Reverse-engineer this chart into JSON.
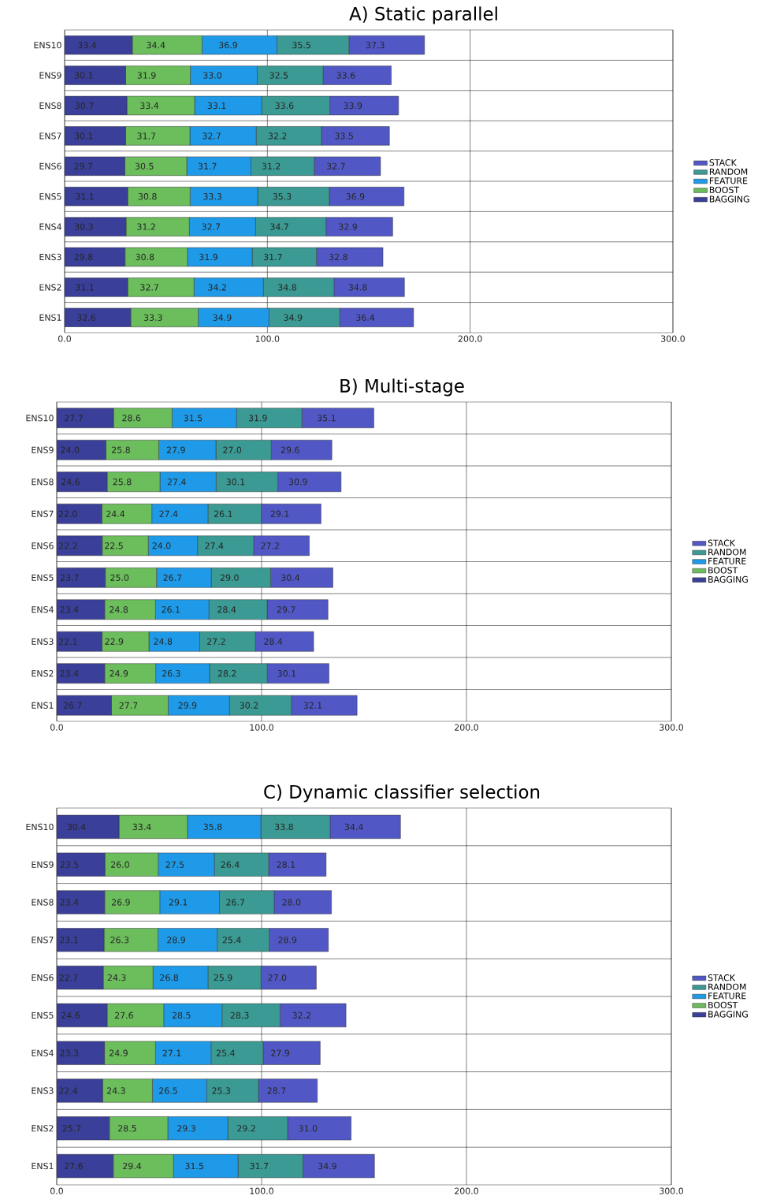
{
  "chart_data": [
    {
      "type": "bar",
      "orientation": "horizontal",
      "stacked": true,
      "title": "A) Static parallel",
      "categories": [
        "ENS10",
        "ENS9",
        "ENS8",
        "ENS7",
        "ENS6",
        "ENS5",
        "ENS4",
        "ENS3",
        "ENS2",
        "ENS1"
      ],
      "series": [
        {
          "name": "BAGGING",
          "color": "#3a3f99",
          "values": [
            33.4,
            30.1,
            30.7,
            30.1,
            29.7,
            31.1,
            30.3,
            29.8,
            31.1,
            32.6
          ],
          "value_labels": [
            "33.4",
            "30.1",
            "30.7",
            "30.1",
            "29.7",
            "31.1",
            "30.3",
            "29.8",
            "31.1",
            "32.6"
          ]
        },
        {
          "name": "BOOST",
          "color": "#6cbd5c",
          "values": [
            34.4,
            31.9,
            33.4,
            31.7,
            30.5,
            30.8,
            31.2,
            30.8,
            32.7,
            33.3
          ],
          "value_labels": [
            "34.4",
            "31.9",
            "33.4",
            "31.7",
            "30.5",
            "30.8",
            "31.2",
            "30.8",
            "32.7",
            "33.3"
          ]
        },
        {
          "name": "FEATURE",
          "color": "#1f9ae8",
          "values": [
            36.9,
            33.0,
            33.1,
            32.7,
            31.7,
            33.3,
            32.7,
            31.9,
            34.2,
            34.9
          ],
          "value_labels": [
            "36.9",
            "33.0",
            "33.1",
            "32.7",
            "31.7",
            "33.3",
            "32.7",
            "31.9",
            "34.2",
            "34.9"
          ]
        },
        {
          "name": "RANDOM",
          "color": "#3b9a93",
          "values": [
            35.5,
            32.5,
            33.6,
            32.2,
            31.2,
            35.3,
            34.7,
            31.7,
            34.8,
            34.9
          ],
          "value_labels": [
            "35.5",
            "32.5",
            "33.6",
            "32.2",
            "31.2",
            "35.3",
            "34.7",
            "31.7",
            "34.8",
            "34.9"
          ]
        },
        {
          "name": "STACK",
          "color": "#5158c5",
          "values": [
            37.3,
            33.6,
            33.9,
            33.5,
            32.7,
            36.9,
            32.9,
            32.8,
            34.8,
            36.4
          ],
          "value_labels": [
            "37.3",
            "33.6",
            "33.9",
            "33.5",
            "32.7",
            "36.9",
            "32.9",
            "32.8",
            "34.8",
            "36.4"
          ]
        }
      ],
      "xlim": [
        0,
        300
      ],
      "xticks": [
        {
          "value": 0,
          "label": "0.0"
        },
        {
          "value": 100,
          "label": "100.0"
        },
        {
          "value": 200,
          "label": "200.0"
        },
        {
          "value": 300,
          "label": "300.0"
        }
      ],
      "grid": true,
      "legend": "right"
    },
    {
      "type": "bar",
      "orientation": "horizontal",
      "stacked": true,
      "title": "B)  Multi-stage",
      "categories": [
        "ENS10",
        "ENS9",
        "ENS8",
        "ENS7",
        "ENS6",
        "ENS5",
        "ENS4",
        "ENS3",
        "ENS2",
        "ENS1"
      ],
      "series": [
        {
          "name": "BAGGING",
          "color": "#3a3f99",
          "values": [
            27.7,
            24.0,
            24.6,
            22.0,
            22.2,
            23.7,
            23.4,
            22.1,
            23.4,
            26.7
          ],
          "value_labels": [
            "27.7",
            "24.0",
            "24.6",
            "22.0",
            "22.2",
            "23.7",
            "23.4",
            "22.1",
            "23.4",
            "26.7"
          ]
        },
        {
          "name": "BOOST",
          "color": "#6cbd5c",
          "values": [
            28.6,
            25.8,
            25.8,
            24.4,
            22.5,
            25.0,
            24.8,
            22.9,
            24.9,
            27.7
          ],
          "value_labels": [
            "28.6",
            "25.8",
            "25.8",
            "24.4",
            "22.5",
            "25.0",
            "24.8",
            "22.9",
            "24.9",
            "27.7"
          ]
        },
        {
          "name": "FEATURE",
          "color": "#1f9ae8",
          "values": [
            31.5,
            27.9,
            27.4,
            27.4,
            24.0,
            26.7,
            26.1,
            24.8,
            26.3,
            29.9
          ],
          "value_labels": [
            "31.5",
            "27.9",
            "27.4",
            "27.4",
            "24.0",
            "26.7",
            "26.1",
            "24.8",
            "26.3",
            "29.9"
          ]
        },
        {
          "name": "RANDOM",
          "color": "#3b9a93",
          "values": [
            31.9,
            27.0,
            30.1,
            26.1,
            27.4,
            29.0,
            28.4,
            27.2,
            28.2,
            30.2
          ],
          "value_labels": [
            "31.9",
            "27.0",
            "30.1",
            "26.1",
            "27.4",
            "29.0",
            "28.4",
            "27.2",
            "28.2",
            "30.2"
          ]
        },
        {
          "name": "STACK",
          "color": "#5158c5",
          "values": [
            35.1,
            29.6,
            30.9,
            29.1,
            27.2,
            30.4,
            29.7,
            28.4,
            30.1,
            32.1
          ],
          "value_labels": [
            "35.1",
            "29.6",
            "30.9",
            "29.1",
            "27.2",
            "30.4",
            "29.7",
            "28.4",
            "30.1",
            "32.1"
          ]
        }
      ],
      "xlim": [
        0,
        300
      ],
      "xticks": [
        {
          "value": 0,
          "label": "0.0"
        },
        {
          "value": 100,
          "label": "100.0"
        },
        {
          "value": 200,
          "label": "200.0"
        },
        {
          "value": 300,
          "label": "300.0"
        }
      ],
      "grid": true,
      "legend": "right"
    },
    {
      "type": "bar",
      "orientation": "horizontal",
      "stacked": true,
      "title": "C) Dynamic classifier selection",
      "categories": [
        "ENS10",
        "ENS9",
        "ENS8",
        "ENS7",
        "ENS6",
        "ENS5",
        "ENS4",
        "ENS3",
        "ENS2",
        "ENS1"
      ],
      "series": [
        {
          "name": "BAGGING",
          "color": "#3a3f99",
          "values": [
            30.4,
            23.5,
            23.4,
            23.1,
            22.7,
            24.6,
            23.3,
            22.4,
            25.7,
            27.6
          ],
          "value_labels": [
            "30.4",
            "23.5",
            "23.4",
            "23.1",
            "22.7",
            "24.6",
            "23.3",
            "22.4",
            "25.7",
            "27.6"
          ]
        },
        {
          "name": "BOOST",
          "color": "#6cbd5c",
          "values": [
            33.4,
            26.0,
            26.9,
            26.3,
            24.3,
            27.6,
            24.9,
            24.3,
            28.5,
            29.4
          ],
          "value_labels": [
            "33.4",
            "26.0",
            "26.9",
            "26.3",
            "24.3",
            "27.6",
            "24.9",
            "24.3",
            "28.5",
            "29.4"
          ]
        },
        {
          "name": "FEATURE",
          "color": "#1f9ae8",
          "values": [
            35.8,
            27.5,
            29.1,
            28.9,
            26.8,
            28.5,
            27.1,
            26.5,
            29.3,
            31.5
          ],
          "value_labels": [
            "35.8",
            "27.5",
            "29.1",
            "28.9",
            "26.8",
            "28.5",
            "27.1",
            "26.5",
            "29.3",
            "31.5"
          ]
        },
        {
          "name": "RANDOM",
          "color": "#3b9a93",
          "values": [
            33.8,
            26.4,
            26.7,
            25.4,
            25.9,
            28.3,
            25.4,
            25.3,
            29.2,
            31.7
          ],
          "value_labels": [
            "33.8",
            "26.4",
            "26.7",
            "25.4",
            "25.9",
            "28.3",
            "25.4",
            "25.3",
            "29.2",
            "31.7"
          ]
        },
        {
          "name": "STACK",
          "color": "#5158c5",
          "values": [
            34.4,
            28.1,
            28.0,
            28.9,
            27.0,
            32.2,
            27.9,
            28.7,
            31.0,
            34.9
          ],
          "value_labels": [
            "34.4",
            "28.1",
            "28.0",
            "28.9",
            "27.0",
            "32.2",
            "27.9",
            "28.7",
            "31.0",
            "34.9"
          ]
        }
      ],
      "xlim": [
        0,
        300
      ],
      "xticks": [
        {
          "value": 0,
          "label": "0.0"
        },
        {
          "value": 100,
          "label": "100.0"
        },
        {
          "value": 200,
          "label": "200.0"
        },
        {
          "value": 300,
          "label": "300.0"
        }
      ],
      "grid": true,
      "legend": "right"
    }
  ]
}
